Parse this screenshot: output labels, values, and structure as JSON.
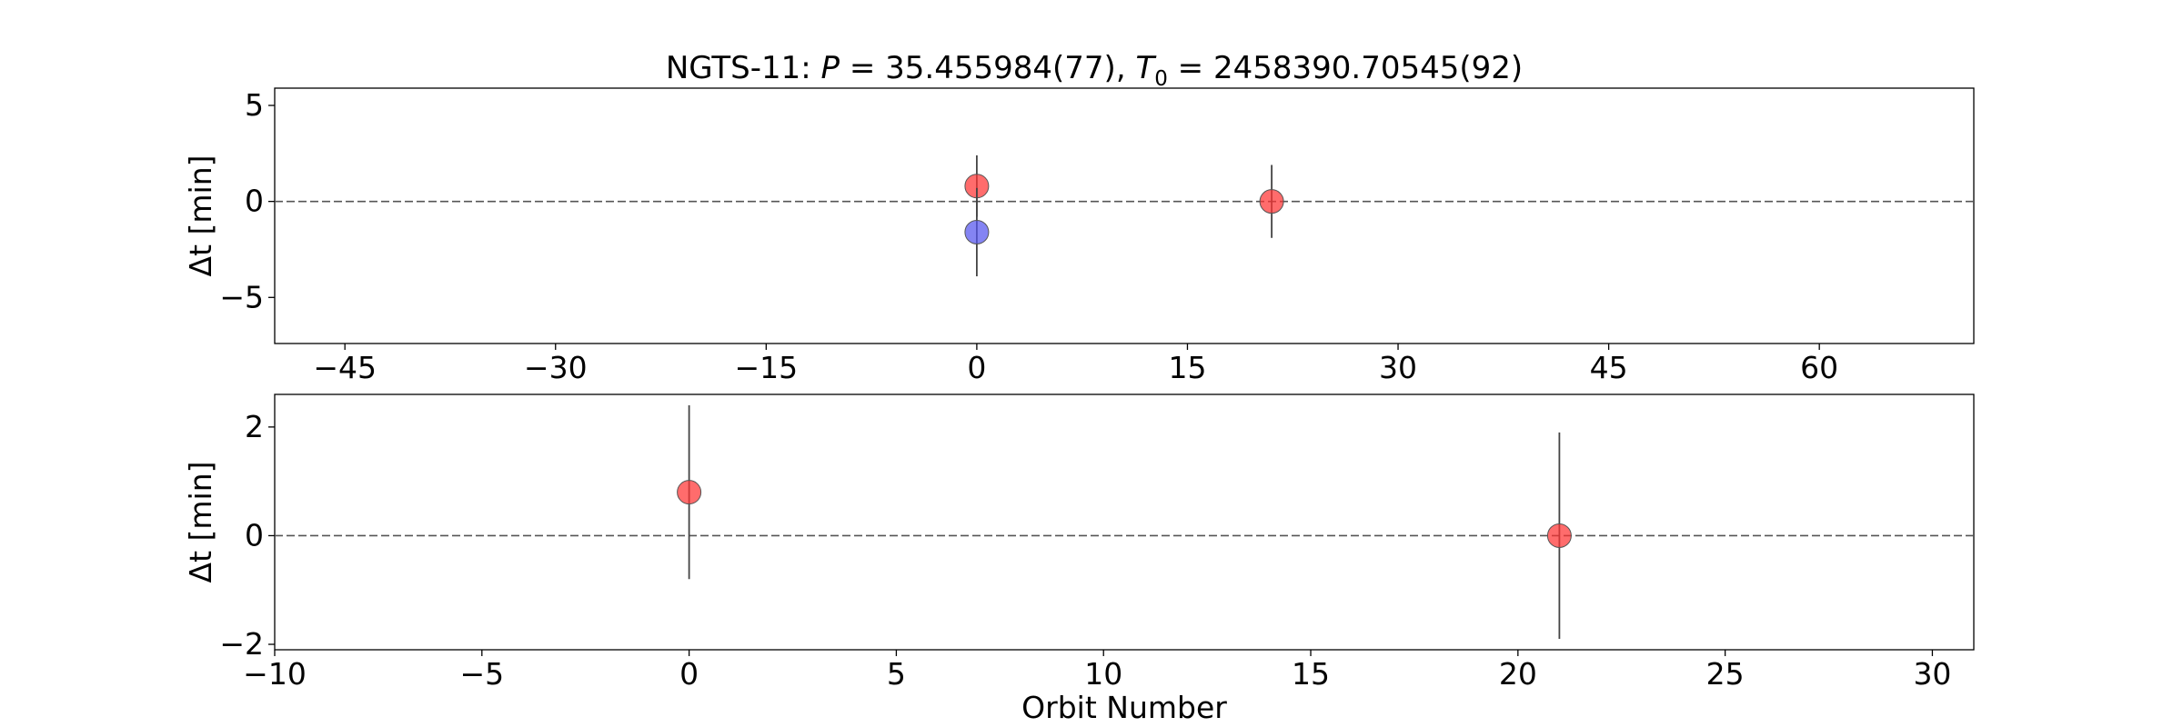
{
  "figure": {
    "title_prefix": "NGTS-11: ",
    "title_p_symbol": "P",
    "title_p_value": " = 35.455984(77), ",
    "title_t0_symbol": "T",
    "title_t0_subscript": "0",
    "title_t0_value": " = 2458390.70545(92)"
  },
  "chart_data": [
    {
      "type": "scatter",
      "ylabel": "Δt [min]",
      "xlabel": "",
      "xlim": [
        -50,
        71
      ],
      "ylim": [
        -7.4,
        5.9
      ],
      "x_ticks": [
        -45,
        -30,
        -15,
        0,
        15,
        30,
        45,
        60
      ],
      "y_ticks": [
        -5,
        0,
        5
      ],
      "reference_line": 0,
      "grid": false,
      "series": [
        {
          "color": "#ff3333",
          "points": [
            {
              "x": 0,
              "y": 0.8,
              "yerr": 1.6
            },
            {
              "x": 21,
              "y": 0.0,
              "yerr": 1.9
            }
          ]
        },
        {
          "color": "#5555ee",
          "points": [
            {
              "x": 0,
              "y": -1.6,
              "yerr": 2.3
            }
          ]
        }
      ]
    },
    {
      "type": "scatter",
      "ylabel": "Δt [min]",
      "xlabel": "Orbit Number",
      "xlim": [
        -10,
        31
      ],
      "ylim": [
        -2.1,
        2.6
      ],
      "x_ticks": [
        -10,
        -5,
        0,
        5,
        10,
        15,
        20,
        25,
        30
      ],
      "y_ticks": [
        -2,
        0,
        2
      ],
      "reference_line": 0,
      "grid": false,
      "series": [
        {
          "color": "#ff3333",
          "points": [
            {
              "x": 0,
              "y": 0.8,
              "yerr": 1.6
            },
            {
              "x": 21,
              "y": 0.0,
              "yerr": 1.9
            }
          ]
        }
      ]
    }
  ]
}
